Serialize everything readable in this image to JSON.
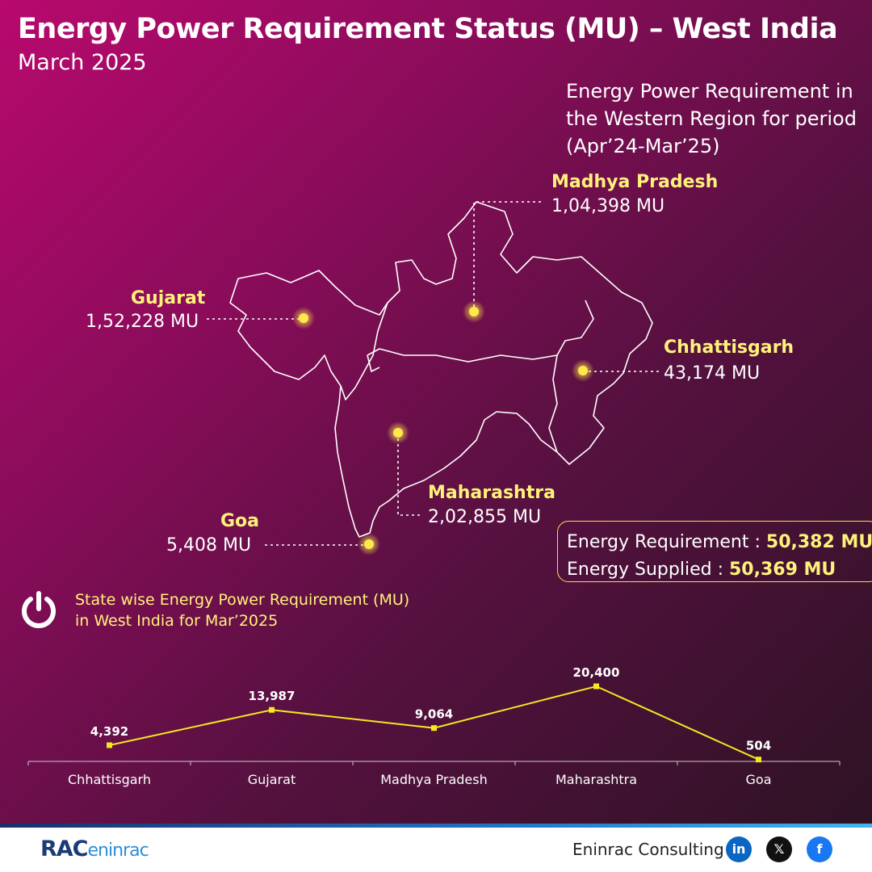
{
  "header": {
    "title": "Energy Power Requirement Status (MU) – West India",
    "subtitle": "March 2025"
  },
  "region_note": "Energy Power Requirement in the Western Region for period (Apr’24-Mar’25)",
  "states": [
    {
      "name": "Madhya Pradesh",
      "value": "1,04,398 MU"
    },
    {
      "name": "Gujarat",
      "value": "1,52,228 MU"
    },
    {
      "name": "Chhattisgarh",
      "value": "43,174 MU"
    },
    {
      "name": "Maharashtra",
      "value": "2,02,855 MU"
    },
    {
      "name": "Goa",
      "value": "5,408 MU"
    }
  ],
  "supply_box": {
    "requirement_label": "Energy Requirement : ",
    "requirement_value": "50,382 MU",
    "supplied_label": "Energy Supplied : ",
    "supplied_value": "50,369 MU"
  },
  "chart_caption": {
    "line1": "State wise Energy Power Requirement (MU)",
    "line2": "in West India for Mar’2025"
  },
  "chart_data": {
    "type": "line",
    "categories": [
      "Chhattisgarh",
      "Gujarat",
      "Madhya Pradesh",
      "Maharashtra",
      "Goa"
    ],
    "values": [
      4392,
      13987,
      9064,
      20400,
      504
    ],
    "value_labels": [
      "4,392",
      "13,987",
      "9,064",
      "20,400",
      "504"
    ],
    "line_color": "#f4e81f"
  },
  "footer": {
    "logo_text": "RAC",
    "logo_suffix": "eninrac",
    "company": "Eninrac Consulting",
    "social": [
      {
        "icon": "linkedin-icon",
        "glyph": "in",
        "color": "#0a66c2"
      },
      {
        "icon": "x-icon",
        "glyph": "𝕏",
        "color": "#111111"
      },
      {
        "icon": "facebook-icon",
        "glyph": "f",
        "color": "#1877f2"
      }
    ]
  },
  "colors": {
    "accent_yellow": "#fff27a",
    "marker": "#ffe94a",
    "background_start": "#b8096e",
    "background_end": "#2b1222"
  }
}
